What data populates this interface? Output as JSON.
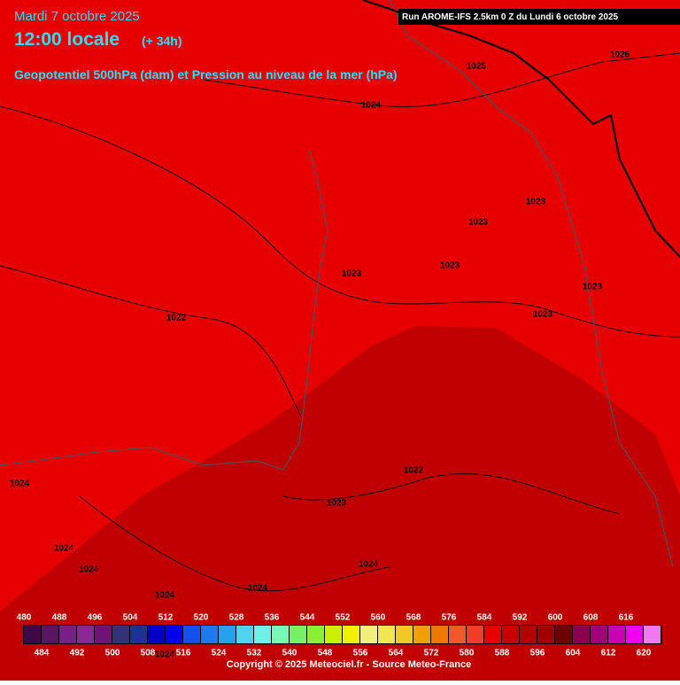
{
  "header": {
    "date": "Mardi 7 octobre 2025",
    "time": "12:00 locale",
    "lead": "(+ 34h)",
    "subtitle": "Geopotentiel 500hPa (dam) et Pression au niveau de la mer (hPa)",
    "run": "Run AROME-IFS 2.5km 0 Z du Lundi 6 octobre 2025"
  },
  "isobar_labels": [
    "1025",
    "1026",
    "1024",
    "1023",
    "1023",
    "1023",
    "1023",
    "1023",
    "1023",
    "1022",
    "1022",
    "1024",
    "1023",
    "1024",
    "1024",
    "1024",
    "1024",
    "1024",
    "1024"
  ],
  "colorbar": {
    "values": [
      480,
      484,
      488,
      492,
      496,
      500,
      504,
      508,
      512,
      516,
      520,
      524,
      528,
      532,
      536,
      540,
      544,
      548,
      552,
      556,
      560,
      564,
      568,
      572,
      576,
      580,
      584,
      588,
      592,
      596,
      600,
      604,
      608,
      612,
      616,
      620
    ],
    "colors": [
      "#3c0a46",
      "#5a1464",
      "#7a1e8a",
      "#8c2896",
      "#6e1478",
      "#323278",
      "#1e3296",
      "#0000c8",
      "#0000f0",
      "#1450f0",
      "#1e78f0",
      "#28a0f0",
      "#50d2f0",
      "#6ef0e6",
      "#78fab4",
      "#78f064",
      "#8cf032",
      "#c8f000",
      "#f0f000",
      "#f0f07a",
      "#f0e650",
      "#f0c828",
      "#f0a000",
      "#f07800",
      "#f05a28",
      "#f03c28",
      "#e60000",
      "#c80000",
      "#b40000",
      "#a00000",
      "#6e0000",
      "#8c0050",
      "#a0007a",
      "#c800b4",
      "#f000f0",
      "#f078f0"
    ]
  },
  "footer": "Copyright © 2025 Meteociel.fr - Source Meteo-France"
}
